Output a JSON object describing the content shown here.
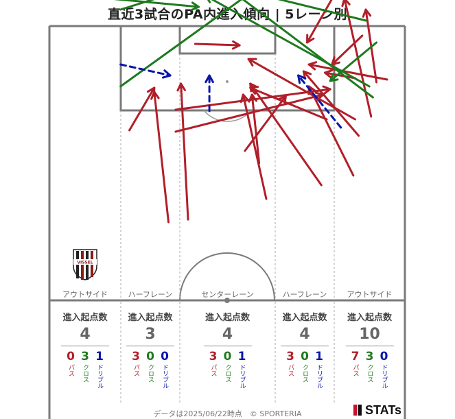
{
  "title": "直近3試合のPA内進入傾向 | 5レーン別",
  "colors": {
    "pass": "#b11f2a",
    "cross": "#1e7a1e",
    "dribble": "#0a16a8",
    "pitch_line": "#7a7a7a"
  },
  "crest": {
    "text": "VISSEL"
  },
  "lanes": [
    {
      "label": "アウトサイド",
      "stat_title": "進入起点数",
      "total": "4",
      "pass": "0",
      "cross": "3",
      "dribble": "1",
      "pass_label": "パス",
      "cross_label": "クロス",
      "dribble_label": "ドリブル"
    },
    {
      "label": "ハーフレーン",
      "stat_title": "進入起点数",
      "total": "3",
      "pass": "3",
      "cross": "0",
      "dribble": "0",
      "pass_label": "パス",
      "cross_label": "クロス",
      "dribble_label": "ドリブル"
    },
    {
      "label": "センターレーン",
      "stat_title": "進入起点数",
      "total": "4",
      "pass": "3",
      "cross": "0",
      "dribble": "1",
      "pass_label": "パス",
      "cross_label": "クロス",
      "dribble_label": "ドリブル"
    },
    {
      "label": "ハーフレーン",
      "stat_title": "進入起点数",
      "total": "4",
      "pass": "3",
      "cross": "0",
      "dribble": "1",
      "pass_label": "パス",
      "cross_label": "クロス",
      "dribble_label": "ドリブル"
    },
    {
      "label": "アウトサイド",
      "stat_title": "進入起点数",
      "total": "10",
      "pass": "7",
      "cross": "3",
      "dribble": "0",
      "pass_label": "パス",
      "cross_label": "クロス",
      "dribble_label": "ドリブル"
    }
  ],
  "footer": "データは2025/06/22時点　© SPORTERIA",
  "brand": "STATs",
  "chart_data": {
    "type": "arrow-map",
    "units": "pitch coordinates: x 0-100 across the width (left to right), y 0-100 up the pitch from the halfway line to the goal line",
    "series": [
      {
        "name": "パス",
        "color": "#b11f2a",
        "style": "solid",
        "arrows": [
          [
            33.5,
            28.5,
            29.5,
            76
          ],
          [
            55,
            54.5,
            66.5,
            74.5
          ],
          [
            41,
            93.5,
            53.5,
            93
          ],
          [
            35.5,
            69.5,
            79,
            77
          ],
          [
            22.5,
            62,
            29.5,
            77.5
          ],
          [
            61,
            37,
            54.5,
            75
          ],
          [
            78,
            66,
            56.5,
            77.5
          ],
          [
            87,
            60,
            71.5,
            83.5
          ],
          [
            85.5,
            45.5,
            73,
            78
          ],
          [
            92,
            79.5,
            89,
            106
          ],
          [
            90.5,
            67,
            83,
            110
          ],
          [
            95,
            80.5,
            73,
            86
          ],
          [
            81.5,
            114.5,
            72.5,
            94
          ],
          [
            88,
            96.5,
            79.5,
            86
          ],
          [
            86,
            81,
            77.5,
            83
          ],
          [
            59,
            50,
            57,
            75
          ],
          [
            35.5,
            61.5,
            77,
            75
          ],
          [
            39,
            29.5,
            37,
            79
          ],
          [
            76.5,
            42,
            56.5,
            79
          ],
          [
            86,
            66,
            56,
            88
          ]
        ]
      },
      {
        "name": "クロス",
        "color": "#1e7a1e",
        "style": "solid",
        "arrows": [
          [
            17,
            110,
            42,
            107
          ],
          [
            92,
            94,
            79,
            80
          ],
          [
            90,
            78,
            44,
            111
          ],
          [
            91,
            74,
            46,
            118
          ],
          [
            89,
            102,
            45,
            116
          ],
          [
            20,
            106,
            62,
            123
          ],
          [
            20,
            78,
            65,
            120
          ]
        ]
      },
      {
        "name": "ドリブル",
        "color": "#0a16a8",
        "style": "dashed",
        "arrows": [
          [
            82,
            63,
            70,
            82
          ],
          [
            45,
            69,
            45,
            82
          ],
          [
            20,
            86,
            34,
            82
          ]
        ]
      }
    ]
  }
}
